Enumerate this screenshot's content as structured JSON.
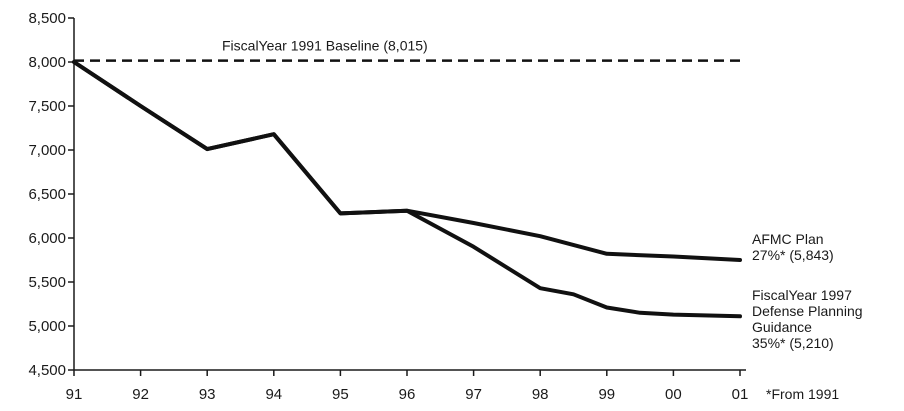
{
  "chart_data": {
    "type": "line",
    "x": [
      "91",
      "92",
      "93",
      "94",
      "95",
      "96",
      "97",
      "98",
      "99",
      "00",
      "01"
    ],
    "ylim": [
      4500,
      8500
    ],
    "yticks": [
      4500,
      5000,
      5500,
      6000,
      6500,
      7000,
      7500,
      8000,
      8500
    ],
    "ytick_labels": [
      "4,500",
      "5,000",
      "5,500",
      "6,000",
      "6,500",
      "7,000",
      "7,500",
      "8,000",
      "8,500"
    ],
    "grid": false,
    "baseline": {
      "label": "FiscalYear 1991 Baseline (8,015)",
      "value": 8015
    },
    "series": [
      {
        "label_lines": [
          "AFMC Plan",
          "27%* (5,843)"
        ],
        "points": [
          [
            91,
            8000
          ],
          [
            92,
            7500
          ],
          [
            93,
            7010
          ],
          [
            94,
            7180
          ],
          [
            95,
            6280
          ],
          [
            96,
            6310
          ],
          [
            97,
            6170
          ],
          [
            98,
            6020
          ],
          [
            99,
            5820
          ],
          [
            100,
            5790
          ],
          [
            101,
            5750
          ]
        ]
      },
      {
        "label_lines": [
          "FiscalYear 1997",
          "Defense Planning",
          "Guidance",
          "35%* (5,210)"
        ],
        "points": [
          [
            91,
            8000
          ],
          [
            92,
            7500
          ],
          [
            93,
            7010
          ],
          [
            94,
            7180
          ],
          [
            95,
            6280
          ],
          [
            96,
            6310
          ],
          [
            97,
            5900
          ],
          [
            98,
            5430
          ],
          [
            98.5,
            5360
          ],
          [
            99,
            5210
          ],
          [
            99.5,
            5150
          ],
          [
            100,
            5130
          ],
          [
            101,
            5110
          ]
        ]
      }
    ],
    "footnote": "*From 1991"
  }
}
